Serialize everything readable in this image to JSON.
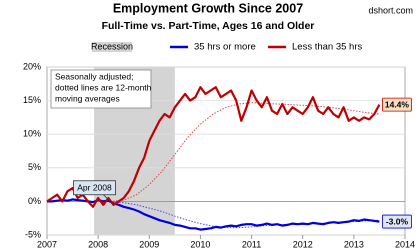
{
  "chart_data": {
    "type": "line",
    "title": "Employment Growth Since 2007",
    "subtitle": "Full-Time vs. Part-Time, Ages 16 and Older",
    "source": "dshort.com",
    "note": [
      "Seasonally adjusted;",
      "dotted lines are 12-month",
      "moving averages"
    ],
    "callout": "Apr 2008",
    "recession": {
      "label": "Recession",
      "start": 2007.92,
      "end": 2009.5,
      "color": "#d4d4d4"
    },
    "xlim": [
      2007,
      2014
    ],
    "xticks": [
      2007,
      2008,
      2009,
      2010,
      2011,
      2012,
      2013,
      2014
    ],
    "ylim": [
      -5,
      20
    ],
    "yticks": [
      {
        "value": -5,
        "label": "-5%"
      },
      {
        "value": 0,
        "label": "0%"
      },
      {
        "value": 5,
        "label": "5%"
      },
      {
        "value": 10,
        "label": "10%"
      },
      {
        "value": 15,
        "label": "15%"
      },
      {
        "value": 20,
        "label": "20%"
      }
    ],
    "grid": true,
    "series": [
      {
        "name": "35 hrs or more",
        "color": "#0000dd",
        "x": [
          2007.0,
          2007.1,
          2007.2,
          2007.3,
          2007.4,
          2007.5,
          2007.6,
          2007.7,
          2007.8,
          2007.9,
          2008.0,
          2008.1,
          2008.2,
          2008.3,
          2008.4,
          2008.5,
          2008.6,
          2008.7,
          2008.8,
          2008.9,
          2009.0,
          2009.1,
          2009.2,
          2009.3,
          2009.4,
          2009.5,
          2009.6,
          2009.7,
          2009.8,
          2009.9,
          2010.0,
          2010.1,
          2010.2,
          2010.3,
          2010.4,
          2010.5,
          2010.6,
          2010.7,
          2010.8,
          2010.9,
          2011.0,
          2011.1,
          2011.2,
          2011.3,
          2011.4,
          2011.5,
          2011.6,
          2011.7,
          2011.8,
          2011.9,
          2012.0,
          2012.1,
          2012.2,
          2012.3,
          2012.4,
          2012.5,
          2012.6,
          2012.7,
          2012.8,
          2012.9,
          2013.0,
          2013.1,
          2013.2,
          2013.3,
          2013.4,
          2013.5
        ],
        "values": [
          0,
          0,
          0.1,
          0.2,
          0.1,
          0.3,
          0.2,
          0.1,
          0,
          -0.1,
          0.2,
          0,
          0.1,
          -0.3,
          -0.5,
          -0.8,
          -1,
          -1.2,
          -1.5,
          -1.9,
          -2.2,
          -2.5,
          -2.8,
          -3,
          -3.2,
          -3.5,
          -3.6,
          -3.8,
          -4,
          -4,
          -4.2,
          -4.1,
          -4,
          -3.8,
          -3.9,
          -3.7,
          -3.6,
          -3.7,
          -3.5,
          -3.4,
          -3.4,
          -3.6,
          -3.5,
          -3.3,
          -3.5,
          -3.4,
          -3.6,
          -3.5,
          -3.3,
          -3.4,
          -3.3,
          -3.4,
          -3.2,
          -3.3,
          -3.4,
          -3.2,
          -3.1,
          -3.2,
          -3.1,
          -3,
          -2.8,
          -2.9,
          -2.7,
          -2.8,
          -2.9,
          -3.0
        ],
        "value_labels": [
          null,
          null,
          null,
          null,
          null,
          null,
          null,
          null,
          null,
          null,
          null,
          null,
          null,
          null,
          null,
          null,
          null,
          null,
          null,
          null,
          null,
          null,
          null,
          null,
          null,
          null,
          null,
          null,
          null,
          null,
          null,
          null,
          null,
          null,
          null,
          null,
          null,
          null,
          null,
          null,
          null,
          null,
          null,
          null,
          null,
          null,
          null,
          null,
          null,
          null,
          null,
          null,
          null,
          null,
          null,
          null,
          null,
          null,
          null,
          null,
          null,
          null,
          null,
          null,
          null,
          "-3.0%"
        ]
      },
      {
        "name": "Less than 35 hrs",
        "color": "#c00000",
        "x": [
          2007.0,
          2007.1,
          2007.2,
          2007.3,
          2007.4,
          2007.5,
          2007.6,
          2007.7,
          2007.8,
          2007.9,
          2008.0,
          2008.1,
          2008.2,
          2008.3,
          2008.4,
          2008.5,
          2008.6,
          2008.7,
          2008.8,
          2008.9,
          2009.0,
          2009.1,
          2009.2,
          2009.3,
          2009.4,
          2009.5,
          2009.6,
          2009.7,
          2009.8,
          2009.9,
          2010.0,
          2010.1,
          2010.2,
          2010.3,
          2010.4,
          2010.5,
          2010.6,
          2010.7,
          2010.8,
          2010.9,
          2011.0,
          2011.1,
          2011.2,
          2011.3,
          2011.4,
          2011.5,
          2011.6,
          2011.7,
          2011.8,
          2011.9,
          2012.0,
          2012.1,
          2012.2,
          2012.3,
          2012.4,
          2012.5,
          2012.6,
          2012.7,
          2012.8,
          2012.9,
          2013.0,
          2013.1,
          2013.2,
          2013.3,
          2013.4,
          2013.5
        ],
        "values": [
          0,
          0.5,
          1,
          0,
          1.5,
          2,
          0.5,
          1,
          0,
          -0.8,
          0.5,
          -0.5,
          0.5,
          -0.5,
          0,
          0.5,
          1.5,
          3,
          5,
          6.5,
          9,
          10.5,
          12,
          13,
          12.5,
          14,
          15,
          16,
          15,
          15.5,
          17,
          16,
          16.5,
          17,
          15.5,
          16,
          16.5,
          15,
          12,
          14,
          16.5,
          15,
          14,
          15.5,
          13.5,
          13,
          14.5,
          13,
          14,
          13.5,
          13,
          14,
          15.5,
          13.5,
          13,
          14,
          13,
          12.5,
          14,
          12,
          12.5,
          12,
          12.5,
          12.2,
          13,
          14.4
        ],
        "value_labels": [
          null,
          null,
          null,
          null,
          null,
          null,
          null,
          null,
          null,
          null,
          null,
          null,
          null,
          null,
          null,
          null,
          null,
          null,
          null,
          null,
          null,
          null,
          null,
          null,
          null,
          null,
          null,
          null,
          null,
          null,
          null,
          null,
          null,
          null,
          null,
          null,
          null,
          null,
          null,
          null,
          null,
          null,
          null,
          null,
          null,
          null,
          null,
          null,
          null,
          null,
          null,
          null,
          null,
          null,
          null,
          null,
          null,
          null,
          null,
          null,
          null,
          null,
          null,
          null,
          null,
          "14.4%"
        ]
      }
    ],
    "moving_averages": [
      {
        "color": "#4a4aff",
        "x": [
          2008.0,
          2008.25,
          2008.5,
          2008.75,
          2009.0,
          2009.25,
          2009.5,
          2009.75,
          2010.0,
          2010.25,
          2010.5,
          2010.75,
          2011.0,
          2011.25,
          2011.5,
          2011.75,
          2012.0,
          2012.25,
          2012.5,
          2012.75,
          2013.0,
          2013.25,
          2013.5
        ],
        "values": [
          0.1,
          0,
          -0.2,
          -0.5,
          -1,
          -1.5,
          -2.2,
          -2.8,
          -3.3,
          -3.7,
          -3.9,
          -3.9,
          -3.8,
          -3.6,
          -3.5,
          -3.4,
          -3.4,
          -3.3,
          -3.2,
          -3.1,
          -3,
          -2.9,
          -2.8
        ]
      },
      {
        "color": "#d84a4a",
        "x": [
          2008.0,
          2008.25,
          2008.5,
          2008.75,
          2009.0,
          2009.25,
          2009.5,
          2009.75,
          2010.0,
          2010.25,
          2010.5,
          2010.75,
          2011.0,
          2011.25,
          2011.5,
          2011.75,
          2012.0,
          2012.25,
          2012.5,
          2012.75,
          2013.0,
          2013.25,
          2013.5
        ],
        "values": [
          0.2,
          0,
          0.2,
          1,
          2.5,
          4.5,
          7,
          9.5,
          11.5,
          13,
          14,
          14.5,
          14.7,
          14.6,
          14.5,
          14.4,
          14.3,
          14.2,
          14,
          13.8,
          13.5,
          13.2,
          13
        ]
      }
    ]
  }
}
